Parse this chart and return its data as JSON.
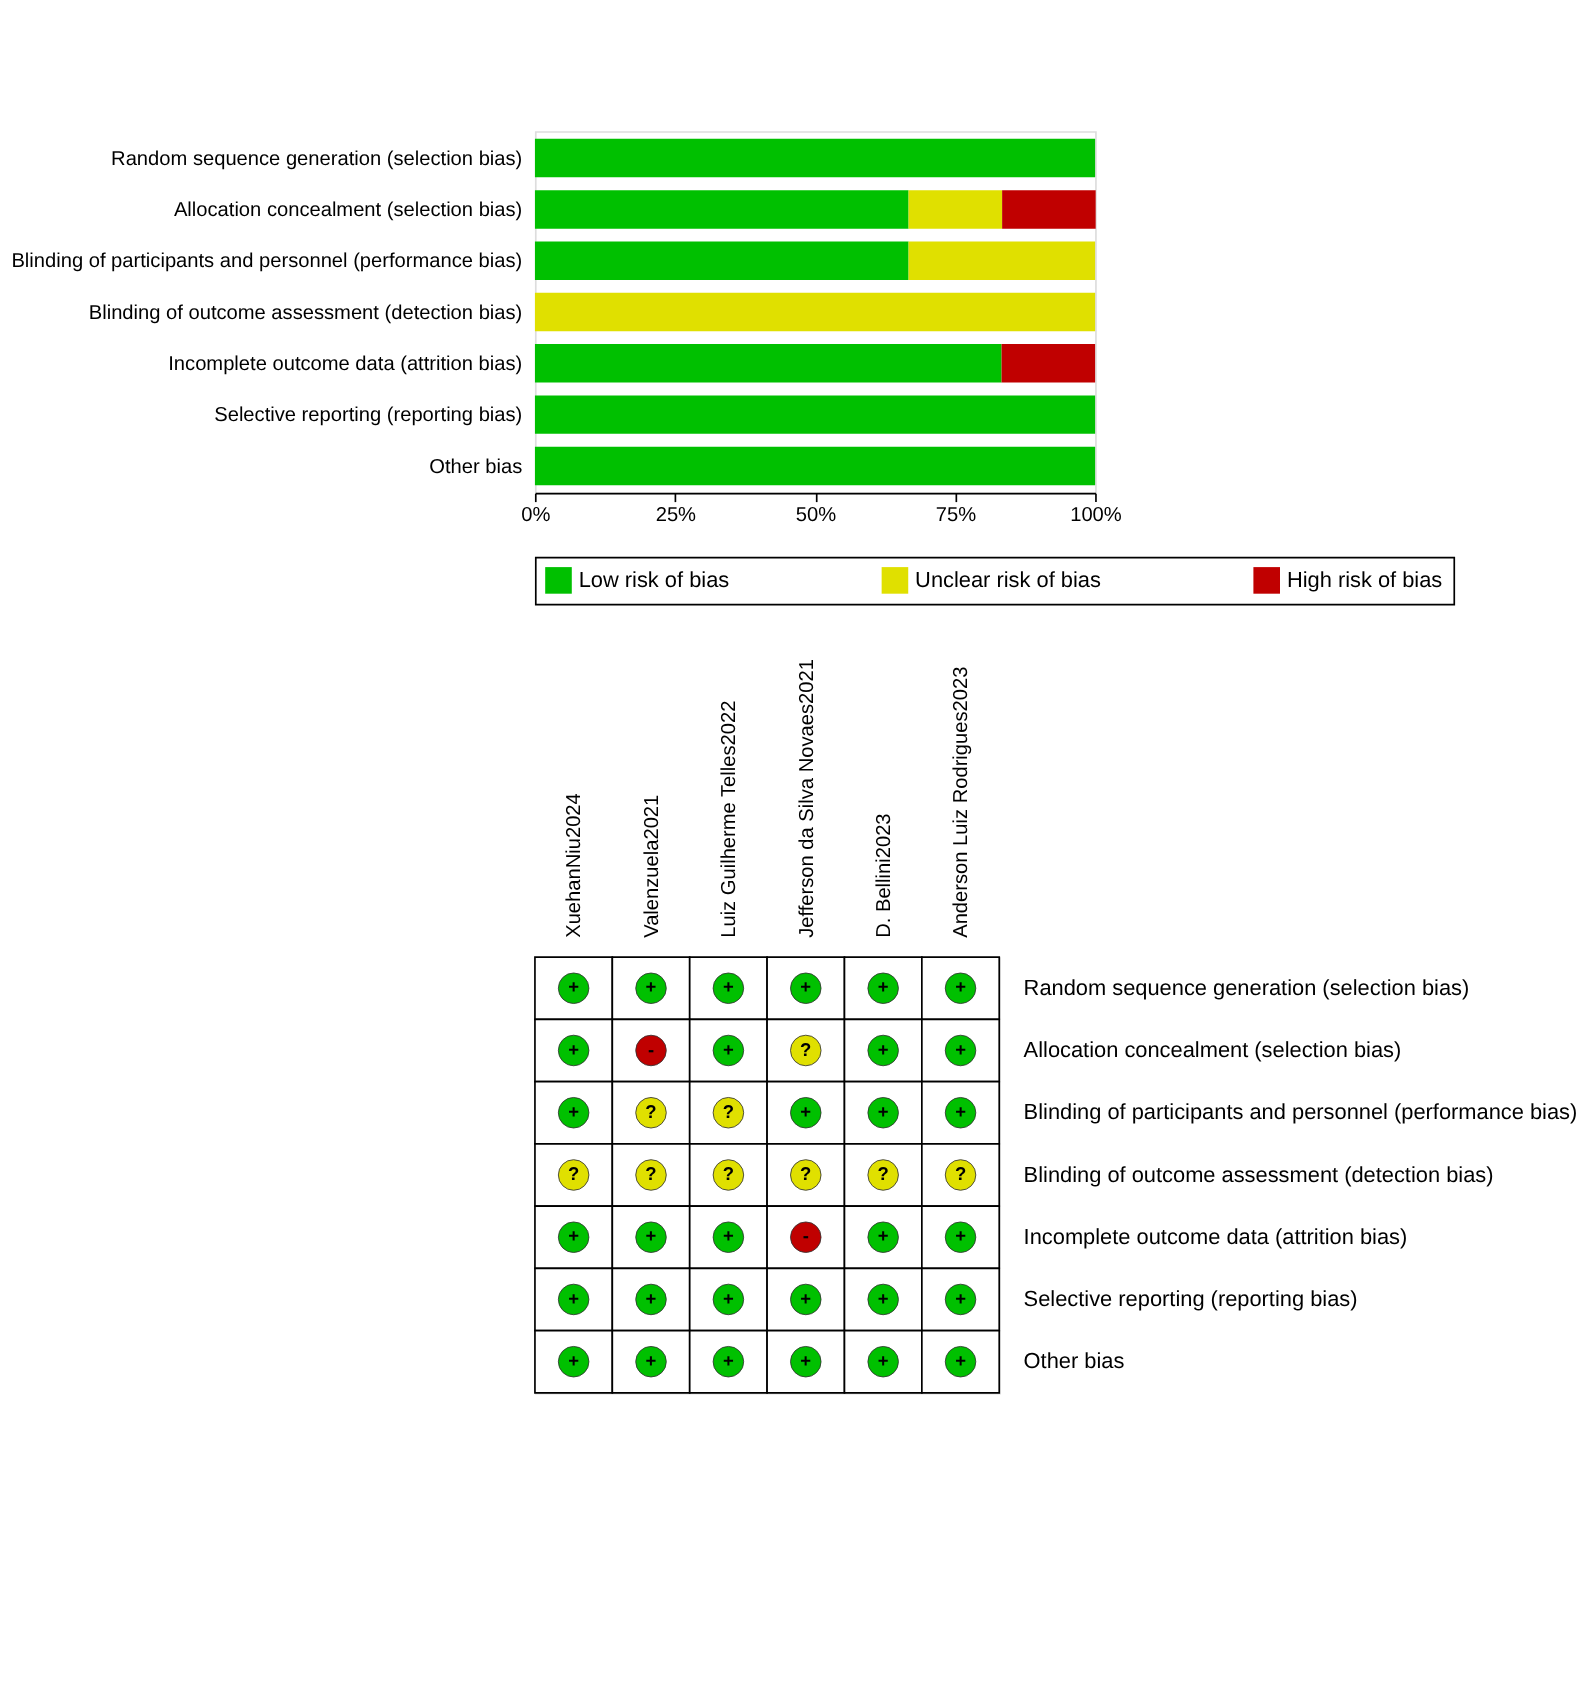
{
  "chart_data": [
    {
      "type": "bar",
      "orientation": "horizontal",
      "stacked": true,
      "categories": [
        "Random sequence generation (selection bias)",
        "Allocation concealment (selection bias)",
        "Blinding of participants and personnel (performance bias)",
        "Blinding of outcome assessment (detection bias)",
        "Incomplete outcome data (attrition bias)",
        "Selective reporting (reporting bias)",
        "Other bias"
      ],
      "series": [
        {
          "name": "Low risk of bias",
          "color": "#00c000",
          "values": [
            100,
            66.7,
            66.7,
            0,
            83.3,
            100,
            100
          ]
        },
        {
          "name": "Unclear risk of bias",
          "color": "#e0e000",
          "values": [
            0,
            16.7,
            33.3,
            100,
            0,
            0,
            0
          ]
        },
        {
          "name": "High risk of bias",
          "color": "#c00000",
          "values": [
            0,
            16.7,
            0,
            0,
            16.7,
            0,
            0
          ]
        }
      ],
      "xlim": [
        0,
        100
      ],
      "xticks": [
        {
          "value": 0,
          "label": "0%"
        },
        {
          "value": 25,
          "label": "25%"
        },
        {
          "value": 50,
          "label": "50%"
        },
        {
          "value": 75,
          "label": "75%"
        },
        {
          "value": 100,
          "label": "100%"
        }
      ],
      "legend": "bottom",
      "grid": false
    },
    {
      "type": "heatmap",
      "categories": [
        "XuehanNiu2024",
        "Valenzuela2021",
        "Luiz Guilherme Telles2022",
        "Jefferson da Silva Novaes2021",
        "D. Bellini2023",
        "Anderson Luiz Rodrigues2023"
      ],
      "y_categories": [
        "Random sequence generation (selection bias)",
        "Allocation concealment (selection bias)",
        "Blinding of participants and personnel (performance bias)",
        "Blinding of outcome assessment (detection bias)",
        "Incomplete outcome data (attrition bias)",
        "Selective reporting (reporting bias)",
        "Other bias"
      ],
      "cells": [
        [
          "+",
          "+",
          "+",
          "+",
          "+",
          "+"
        ],
        [
          "+",
          "-",
          "+",
          "?",
          "+",
          "+"
        ],
        [
          "+",
          "?",
          "?",
          "+",
          "+",
          "+"
        ],
        [
          "?",
          "?",
          "?",
          "?",
          "?",
          "?"
        ],
        [
          "+",
          "+",
          "+",
          "-",
          "+",
          "+"
        ],
        [
          "+",
          "+",
          "+",
          "+",
          "+",
          "+"
        ],
        [
          "+",
          "+",
          "+",
          "+",
          "+",
          "+"
        ]
      ],
      "colors": [
        [
          "#00c000",
          "#00c000",
          "#00c000",
          "#00c000",
          "#00c000",
          "#00c000"
        ],
        [
          "#00c000",
          "#c00000",
          "#00c000",
          "#e0e000",
          "#00c000",
          "#00c000"
        ],
        [
          "#00c000",
          "#e0e000",
          "#e0e000",
          "#00c000",
          "#00c000",
          "#00c000"
        ],
        [
          "#e0e000",
          "#e0e000",
          "#e0e000",
          "#e0e000",
          "#e0e000",
          "#e0e000"
        ],
        [
          "#00c000",
          "#00c000",
          "#00c000",
          "#c00000",
          "#00c000",
          "#00c000"
        ],
        [
          "#00c000",
          "#00c000",
          "#00c000",
          "#00c000",
          "#00c000",
          "#00c000"
        ],
        [
          "#00c000",
          "#00c000",
          "#00c000",
          "#00c000",
          "#00c000",
          "#00c000"
        ]
      ]
    }
  ]
}
